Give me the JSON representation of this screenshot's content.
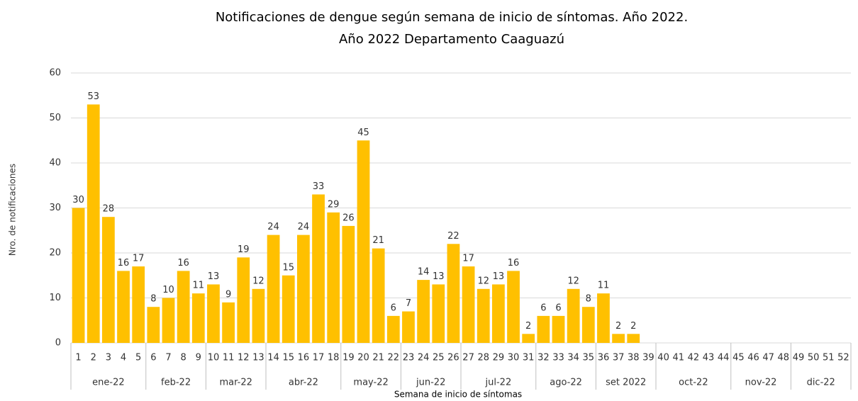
{
  "chart_data": {
    "type": "bar",
    "title": "Notificaciones de dengue según semana de inicio de síntomas. Año 2022.",
    "subtitle": "Año 2022 Departamento Caaguazú",
    "y_label": "Nro. de notificaciones",
    "x_label": "Semana de inicio de síntomas",
    "categories": [
      "1",
      "2",
      "3",
      "4",
      "5",
      "6",
      "7",
      "8",
      "9",
      "10",
      "11",
      "12",
      "13",
      "14",
      "15",
      "16",
      "17",
      "18",
      "19",
      "20",
      "21",
      "22",
      "23",
      "24",
      "25",
      "26",
      "27",
      "28",
      "29",
      "30",
      "31",
      "32",
      "33",
      "34",
      "35",
      "36",
      "37",
      "38",
      "39",
      "40",
      "41",
      "42",
      "43",
      "44",
      "45",
      "46",
      "47",
      "48",
      "49",
      "50",
      "51",
      "52"
    ],
    "values": [
      30,
      53,
      28,
      16,
      17,
      8,
      10,
      16,
      11,
      13,
      9,
      19,
      12,
      24,
      15,
      24,
      33,
      29,
      26,
      45,
      21,
      6,
      7,
      14,
      13,
      22,
      17,
      12,
      13,
      16,
      2,
      6,
      6,
      12,
      8,
      11,
      2,
      2,
      null,
      null,
      null,
      null,
      null,
      null,
      null,
      null,
      null,
      null,
      null,
      null,
      null,
      null
    ],
    "groups": [
      {
        "label": "ene-22",
        "span": 5
      },
      {
        "label": "feb-22",
        "span": 4
      },
      {
        "label": "mar-22",
        "span": 4
      },
      {
        "label": "abr-22",
        "span": 5
      },
      {
        "label": "may-22",
        "span": 4
      },
      {
        "label": "jun-22",
        "span": 4
      },
      {
        "label": "jul-22",
        "span": 5
      },
      {
        "label": "ago-22",
        "span": 4
      },
      {
        "label": "set 2022",
        "span": 4
      },
      {
        "label": "oct-22",
        "span": 5
      },
      {
        "label": "nov-22",
        "span": 4
      },
      {
        "label": "dic-22",
        "span": 4
      }
    ],
    "color": "#FFC000",
    "ylim": [
      0,
      60
    ],
    "yticks": [
      0,
      10,
      20,
      30,
      40,
      50,
      60
    ],
    "grid": true
  }
}
